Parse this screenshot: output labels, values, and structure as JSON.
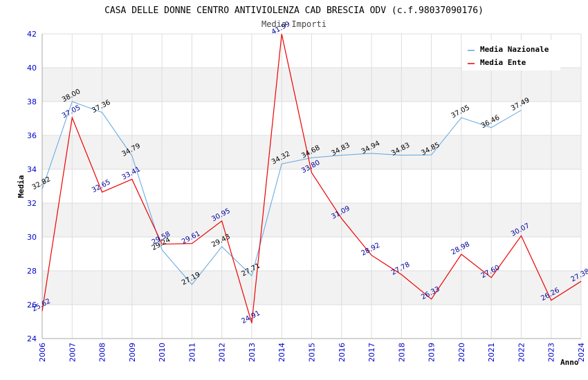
{
  "chart_data": {
    "type": "line",
    "title": "CASA DELLE DONNE CENTRO ANTIVIOLENZA CAD BRESCIA ODV (c.f.98037090176)",
    "subtitle": "Media Importi",
    "xlabel": "Anno",
    "ylabel": "Media",
    "ylim": [
      24,
      42
    ],
    "yticks": [
      "24",
      "26",
      "28",
      "30",
      "32",
      "34",
      "36",
      "38",
      "40",
      "42"
    ],
    "categories": [
      "2006",
      "2007",
      "2008",
      "2009",
      "2010",
      "2011",
      "2012",
      "2013",
      "2014",
      "2015",
      "2016",
      "2017",
      "2018",
      "2019",
      "2020",
      "2021",
      "2022",
      "2023",
      "2024"
    ],
    "legend_position": "top-right",
    "series": [
      {
        "name": "Media Nazionale",
        "color": "#5ea5e0",
        "label_color": "#000000",
        "values": [
          32.82,
          38.0,
          37.36,
          34.79,
          29.24,
          27.19,
          29.43,
          27.71,
          34.32,
          34.68,
          34.83,
          34.94,
          34.83,
          34.85,
          37.05,
          36.46,
          37.49,
          null,
          null
        ],
        "labels": [
          "32.82",
          "38.00",
          "37.36",
          "34.79",
          "29.24",
          "27.19",
          "29.43",
          "27.71",
          "34.32",
          "34.68",
          "34.83",
          "34.94",
          "34.83",
          "34.85",
          "37.05",
          "36.46",
          "37.49",
          null,
          null
        ]
      },
      {
        "name": "Media Ente",
        "color": "#ee0000",
        "label_color": "#000099",
        "values": [
          25.62,
          37.05,
          32.65,
          33.41,
          29.58,
          29.61,
          30.95,
          24.91,
          41.99,
          33.8,
          31.09,
          28.92,
          27.78,
          26.33,
          28.98,
          27.6,
          30.07,
          26.26,
          27.38
        ],
        "labels": [
          "25.62",
          "37.05",
          "32.65",
          "33.41",
          "29.58",
          "29.61",
          "30.95",
          "24.91",
          "41.99",
          "33.80",
          "31.09",
          "28.92",
          "27.78",
          "26.33",
          "28.98",
          "27.60",
          "30.07",
          "26.26",
          "27.38"
        ]
      }
    ]
  }
}
